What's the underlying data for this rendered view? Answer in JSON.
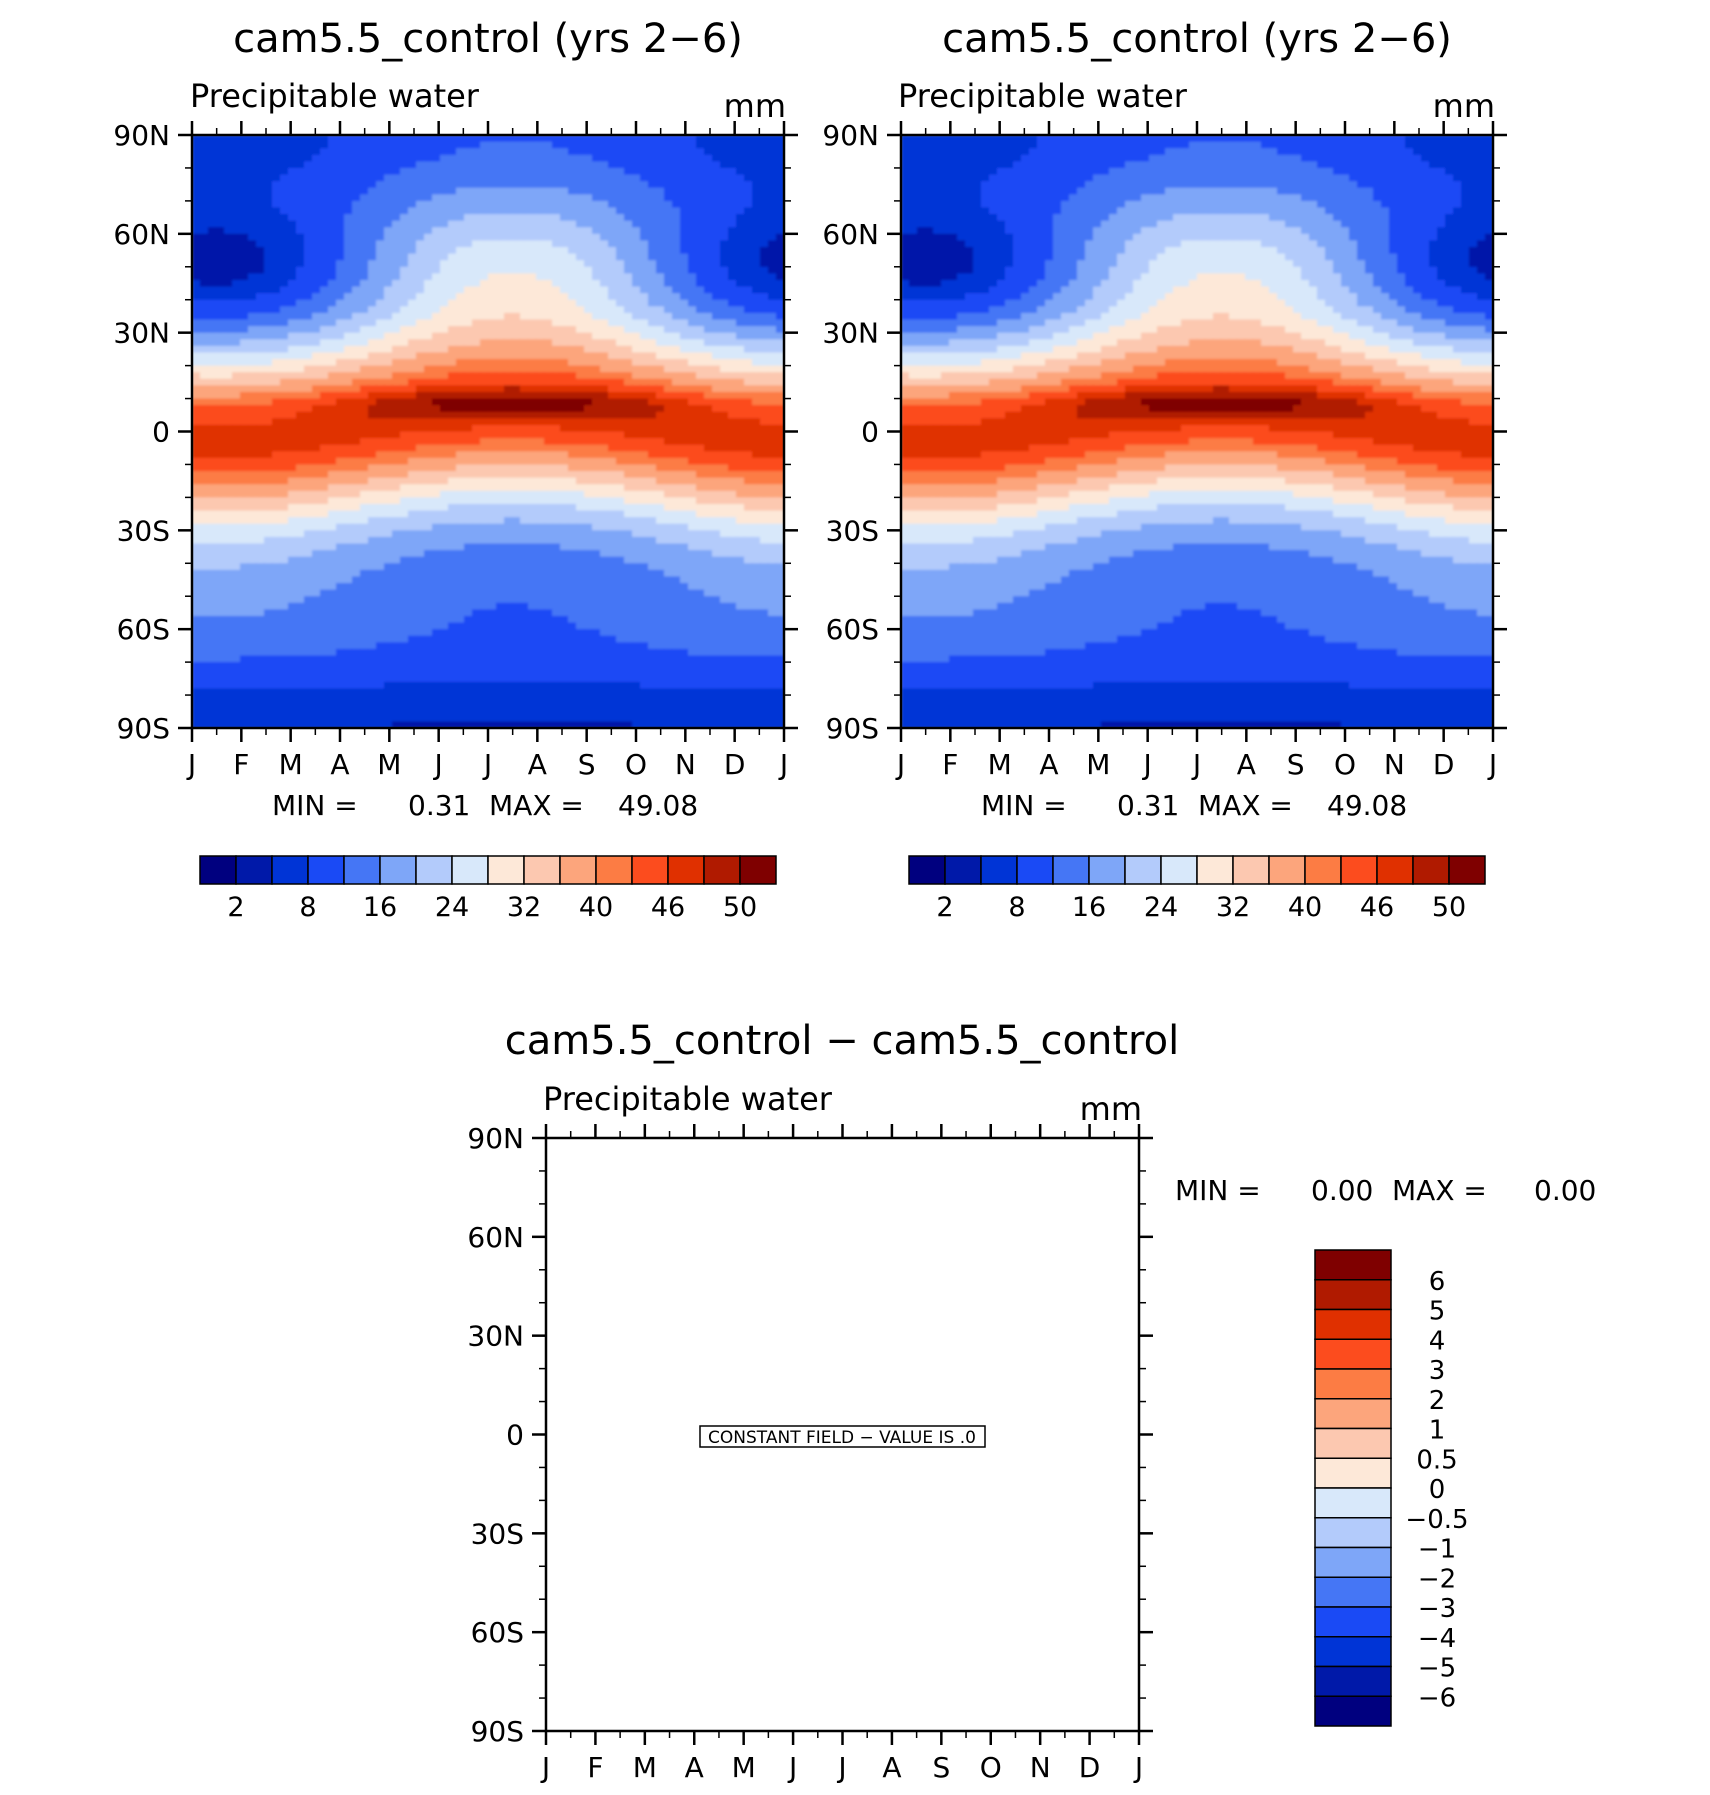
{
  "chart_data": [
    {
      "type": "heatmap",
      "title": "cam5.5_control (yrs 2−6)",
      "subtitle": "Precipitable water",
      "units": "mm",
      "xlabel": "",
      "ylabel": "",
      "x_tick_labels": [
        "J",
        "F",
        "M",
        "A",
        "M",
        "J",
        "J",
        "A",
        "S",
        "O",
        "N",
        "D",
        "J"
      ],
      "y_tick_labels": [
        "90N",
        "60N",
        "30N",
        "0",
        "30S",
        "60S",
        "90S"
      ],
      "lat_range": [
        -90,
        90
      ],
      "stats": {
        "min_label": "MIN =",
        "min_value": "0.31",
        "max_label": "MAX =",
        "max_value": "49.08"
      },
      "levels": [
        "2",
        "8",
        "16",
        "24",
        "32",
        "40",
        "46",
        "50"
      ],
      "colors": [
        "#00007f",
        "#0019a9",
        "#0034d6",
        "#1a4af5",
        "#4576f5",
        "#7ea6f8",
        "#b3cbfb",
        "#d8e8fa",
        "#fde8d8",
        "#fcc8b0",
        "#fca57c",
        "#fc7c44",
        "#fc4c1e",
        "#e03000",
        "#b01a00",
        "#7f0000"
      ]
    },
    {
      "type": "heatmap",
      "title": "cam5.5_control (yrs 2−6)",
      "subtitle": "Precipitable water",
      "units": "mm",
      "xlabel": "",
      "ylabel": "",
      "x_tick_labels": [
        "J",
        "F",
        "M",
        "A",
        "M",
        "J",
        "J",
        "A",
        "S",
        "O",
        "N",
        "D",
        "J"
      ],
      "y_tick_labels": [
        "90N",
        "60N",
        "30N",
        "0",
        "30S",
        "60S",
        "90S"
      ],
      "lat_range": [
        -90,
        90
      ],
      "stats": {
        "min_label": "MIN =",
        "min_value": "0.31",
        "max_label": "MAX =",
        "max_value": "49.08"
      },
      "levels": [
        "2",
        "8",
        "16",
        "24",
        "32",
        "40",
        "46",
        "50"
      ],
      "colors": [
        "#00007f",
        "#0019a9",
        "#0034d6",
        "#1a4af5",
        "#4576f5",
        "#7ea6f8",
        "#b3cbfb",
        "#d8e8fa",
        "#fde8d8",
        "#fcc8b0",
        "#fca57c",
        "#fc7c44",
        "#fc4c1e",
        "#e03000",
        "#b01a00",
        "#7f0000"
      ]
    },
    {
      "type": "heatmap",
      "title": "cam5.5_control − cam5.5_control",
      "subtitle": "Precipitable water",
      "units": "mm",
      "xlabel": "",
      "ylabel": "",
      "x_tick_labels": [
        "J",
        "F",
        "M",
        "A",
        "M",
        "J",
        "J",
        "A",
        "S",
        "O",
        "N",
        "D",
        "J"
      ],
      "y_tick_labels": [
        "90N",
        "60N",
        "30N",
        "0",
        "30S",
        "60S",
        "90S"
      ],
      "lat_range": [
        -90,
        90
      ],
      "stats": {
        "min_label": "MIN =",
        "min_value": "0.00",
        "max_label": "MAX =",
        "max_value": "0.00"
      },
      "note": "CONSTANT FIELD − VALUE IS .0",
      "levels": [
        "6",
        "5",
        "4",
        "3",
        "2",
        "1",
        "0.5",
        "0",
        "−0.5",
        "−1",
        "−2",
        "−3",
        "−4",
        "−5",
        "−6"
      ],
      "colors": [
        "#7f0000",
        "#b01a00",
        "#e03000",
        "#fc4c1e",
        "#fc7c44",
        "#fca57c",
        "#fcc8b0",
        "#fde8d8",
        "#d8e8fa",
        "#b3cbfb",
        "#7ea6f8",
        "#4576f5",
        "#1a4af5",
        "#0034d6",
        "#0019a9",
        "#00007f"
      ]
    }
  ]
}
